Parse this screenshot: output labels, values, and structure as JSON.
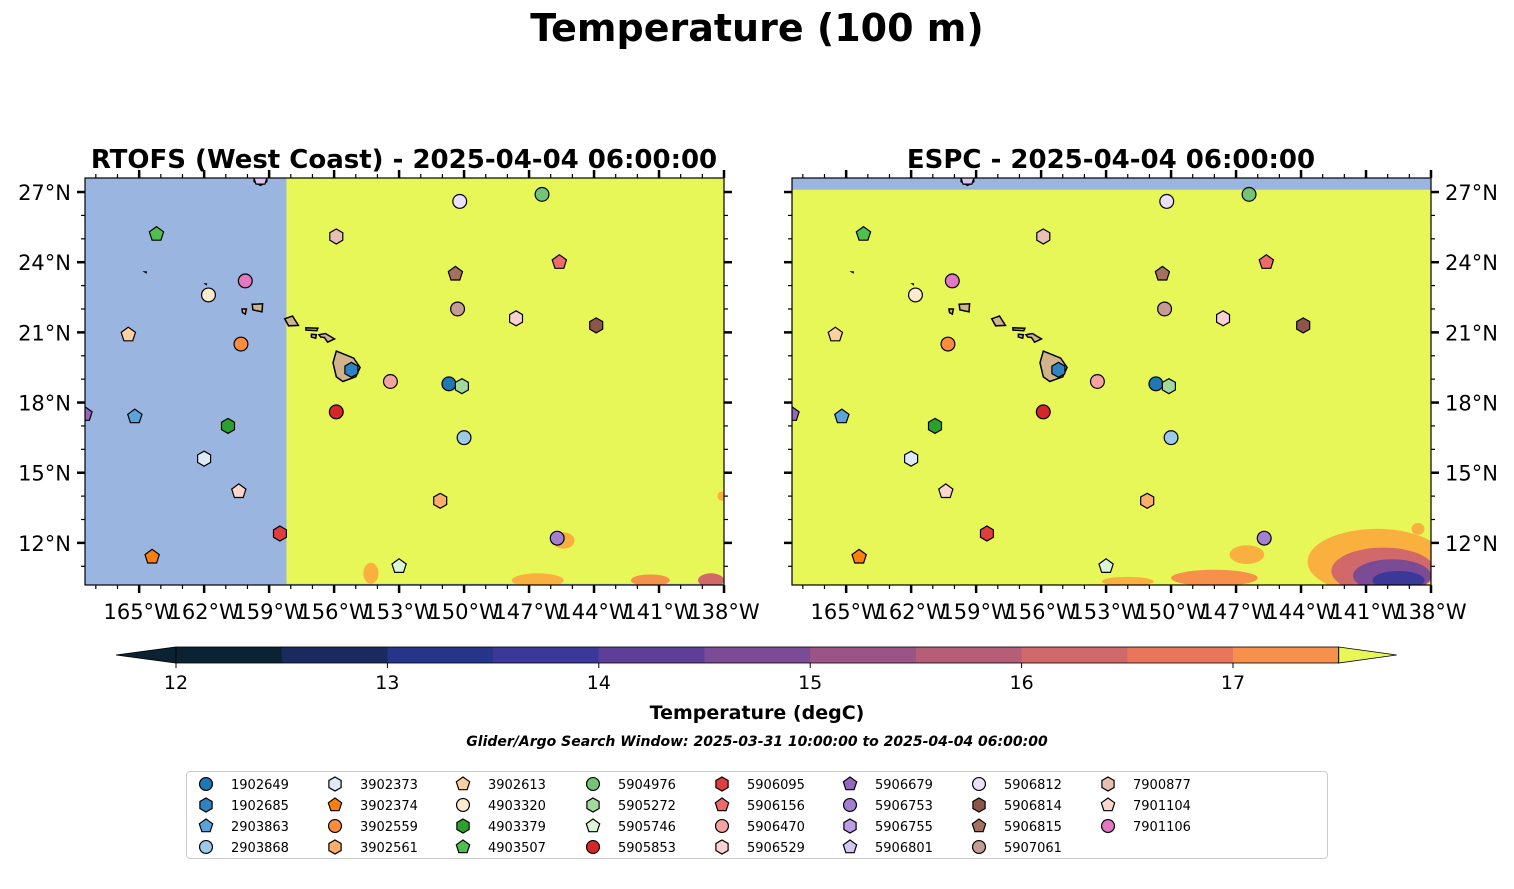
{
  "title": "Temperature (100 m)",
  "panels": [
    {
      "title": "RTOFS (West Coast) - 2025-04-04 06:00:00",
      "yaxis_side": "left"
    },
    {
      "title": "ESPC - 2025-04-04 06:00:00",
      "yaxis_side": "right"
    }
  ],
  "colorbar": {
    "label": "Temperature (degC)",
    "ticks": [
      "12",
      "13",
      "14",
      "15",
      "16",
      "17"
    ],
    "tick_values": [
      12,
      13,
      14,
      15,
      16,
      17
    ],
    "range": [
      11.7,
      17.75
    ],
    "levels": [
      12,
      12.5,
      13,
      13.5,
      14,
      14.5,
      15,
      15.5,
      16,
      16.5,
      17,
      17.5
    ],
    "colors": [
      "#0b2233",
      "#1a2a5e",
      "#26348a",
      "#3c3899",
      "#5d3f9a",
      "#7b4b95",
      "#9a5586",
      "#b65d78",
      "#d1686a",
      "#e9765b",
      "#f6904b",
      "#fab03f",
      "#f7cf45",
      "#e6f757"
    ],
    "under_color": "#0b2233",
    "over_color": "#e6f757"
  },
  "search_window_note": "Glider/Argo Search Window: 2025-03-31 10:00:00 to 2025-04-04 06:00:00",
  "colors": {
    "land": "#d2b48c",
    "no_data_ocean": "#9ab6e0",
    "warm_field": "#e6f757"
  },
  "chart_data": {
    "type": "map",
    "map_extent": {
      "lon": [
        -167.5,
        -138
      ],
      "lat": [
        10.2,
        27.6
      ]
    },
    "x_ticks": [
      {
        "value": -165,
        "label": "165°W"
      },
      {
        "value": -162,
        "label": "162°W"
      },
      {
        "value": -159,
        "label": "159°W"
      },
      {
        "value": -156,
        "label": "156°W"
      },
      {
        "value": -153,
        "label": "153°W"
      },
      {
        "value": -150,
        "label": "150°W"
      },
      {
        "value": -147,
        "label": "147°W"
      },
      {
        "value": -144,
        "label": "144°W"
      },
      {
        "value": -141,
        "label": "141°W"
      },
      {
        "value": -138,
        "label": "138°W"
      }
    ],
    "y_ticks": [
      {
        "value": 12,
        "label": "12°N"
      },
      {
        "value": 15,
        "label": "15°N"
      },
      {
        "value": 18,
        "label": "18°N"
      },
      {
        "value": 21,
        "label": "21°N"
      },
      {
        "value": 24,
        "label": "24°N"
      },
      {
        "value": 27,
        "label": "27°N"
      }
    ],
    "rtofs_data_boundary_lon": -158.2,
    "platforms": [
      {
        "id": "1902649",
        "marker": "circle",
        "color": "#1f77b4",
        "lon": -150.7,
        "lat": 18.8
      },
      {
        "id": "1902685",
        "marker": "hexagon",
        "color": "#2f83c0",
        "lon": -155.2,
        "lat": 19.4
      },
      {
        "id": "2903863",
        "marker": "pentagon",
        "color": "#5aa3dc",
        "lon": -165.2,
        "lat": 17.4
      },
      {
        "id": "2903868",
        "marker": "circle",
        "color": "#9ecae9",
        "lon": -150.0,
        "lat": 16.5
      },
      {
        "id": "3902373",
        "marker": "hexagon",
        "color": "#deebf7",
        "lon": -162.0,
        "lat": 15.6
      },
      {
        "id": "3902374",
        "marker": "pentagon",
        "color": "#ff7f0e",
        "lon": -164.4,
        "lat": 11.4
      },
      {
        "id": "3902559",
        "marker": "circle",
        "color": "#fd8d3c",
        "lon": -160.3,
        "lat": 20.5
      },
      {
        "id": "3902561",
        "marker": "hexagon",
        "color": "#fdae6b",
        "lon": -151.1,
        "lat": 13.8
      },
      {
        "id": "3902613",
        "marker": "pentagon",
        "color": "#fdd0a2",
        "lon": -165.5,
        "lat": 20.9
      },
      {
        "id": "4903320",
        "marker": "circle",
        "color": "#feebcf",
        "lon": -161.8,
        "lat": 22.6
      },
      {
        "id": "4903379",
        "marker": "hexagon",
        "color": "#2ca02c",
        "lon": -160.9,
        "lat": 17.0
      },
      {
        "id": "4903507",
        "marker": "pentagon",
        "color": "#4fbf4f",
        "lon": -164.2,
        "lat": 25.2
      },
      {
        "id": "5904976",
        "marker": "circle",
        "color": "#74c476",
        "lon": -146.4,
        "lat": 26.9
      },
      {
        "id": "5905272",
        "marker": "hexagon",
        "color": "#a1d99b",
        "lon": -150.1,
        "lat": 18.7
      },
      {
        "id": "5905746",
        "marker": "pentagon",
        "color": "#dcf5d4",
        "lon": -153.0,
        "lat": 11.0
      },
      {
        "id": "5905853",
        "marker": "circle",
        "color": "#d62728",
        "lon": -155.9,
        "lat": 17.6
      },
      {
        "id": "5906095",
        "marker": "hexagon",
        "color": "#e03e3e",
        "lon": -158.5,
        "lat": 12.4
      },
      {
        "id": "5906156",
        "marker": "pentagon",
        "color": "#ef6a6a",
        "lon": -145.6,
        "lat": 24.0
      },
      {
        "id": "5906470",
        "marker": "circle",
        "color": "#f4a2a2",
        "lon": -153.4,
        "lat": 18.9
      },
      {
        "id": "5906529",
        "marker": "hexagon",
        "color": "#fbd1d1",
        "lon": -147.6,
        "lat": 21.6
      },
      {
        "id": "5906679",
        "marker": "pentagon",
        "color": "#9467bd",
        "lon": -167.5,
        "lat": 17.5
      },
      {
        "id": "5906753",
        "marker": "circle",
        "color": "#a37fd1",
        "lon": -145.7,
        "lat": 12.2
      },
      {
        "id": "5906755",
        "marker": "hexagon",
        "color": "#bc9ee6",
        "lon": -159.4,
        "lat": 27.6
      },
      {
        "id": "5906801",
        "marker": "pentagon",
        "color": "#d6c4f2",
        "lon": -159.4,
        "lat": 27.6
      },
      {
        "id": "5906812",
        "marker": "circle",
        "color": "#ede0fb",
        "lon": -150.2,
        "lat": 26.6
      },
      {
        "id": "5906814",
        "marker": "hexagon",
        "color": "#8c564b",
        "lon": -143.9,
        "lat": 21.3
      },
      {
        "id": "5906815",
        "marker": "pentagon",
        "color": "#a47161",
        "lon": -150.4,
        "lat": 23.5
      },
      {
        "id": "5907061",
        "marker": "circle",
        "color": "#c49c94",
        "lon": -150.3,
        "lat": 22.0
      },
      {
        "id": "7900877",
        "marker": "hexagon",
        "color": "#e7bfb3",
        "lon": -155.9,
        "lat": 25.1
      },
      {
        "id": "7901104",
        "marker": "pentagon",
        "color": "#fdd7cc",
        "lon": -160.4,
        "lat": 14.2
      },
      {
        "id": "7901106",
        "marker": "circle",
        "color": "#e377c2",
        "lon": -160.1,
        "lat": 23.2
      }
    ]
  }
}
